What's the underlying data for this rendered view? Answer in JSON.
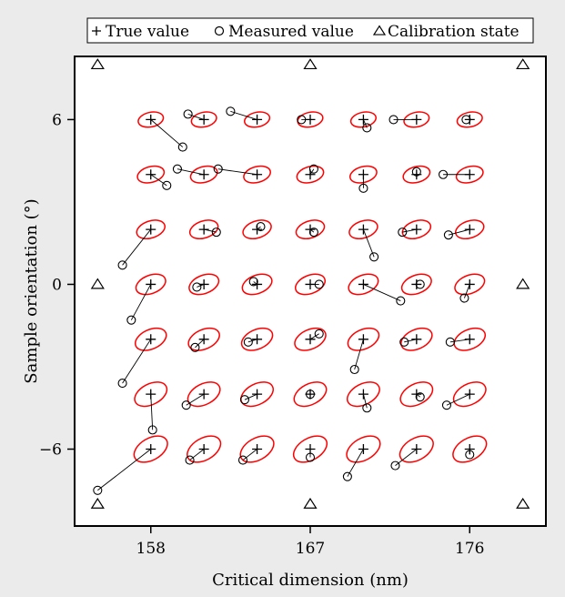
{
  "chart_data": {
    "type": "scatter",
    "title": "",
    "xlabel": "Critical dimension (nm)",
    "ylabel": "Sample orientation (°)",
    "xlim": [
      153.7,
      180.3
    ],
    "ylim": [
      -8.8,
      8.3
    ],
    "x_ticks": [
      158,
      167,
      176
    ],
    "x_tick_labels": [
      "158",
      "167",
      "176"
    ],
    "y_ticks": [
      -6,
      0,
      6
    ],
    "y_tick_labels": [
      "−6",
      "0",
      "6"
    ],
    "grid": false,
    "legend_position": "top",
    "legend": [
      {
        "marker": "+",
        "label": "True value"
      },
      {
        "marker": "○",
        "label": "Measured value"
      },
      {
        "marker": "△",
        "label": "Calibration state"
      }
    ],
    "calibration_states": [
      {
        "x": 155,
        "y": 8
      },
      {
        "x": 167,
        "y": 8
      },
      {
        "x": 179,
        "y": 8
      },
      {
        "x": 155,
        "y": 0
      },
      {
        "x": 179,
        "y": 0
      },
      {
        "x": 155,
        "y": -8
      },
      {
        "x": 167,
        "y": -8
      },
      {
        "x": 179,
        "y": -8
      }
    ],
    "grid_x": [
      158,
      161,
      164,
      167,
      170,
      173,
      176
    ],
    "grid_y": [
      6,
      4,
      2,
      0,
      -2,
      -4,
      -6
    ],
    "measured": [
      [
        [
          159.8,
          5.0
        ],
        [
          160.1,
          6.2
        ],
        [
          162.5,
          6.3
        ],
        [
          166.5,
          6.0
        ],
        [
          170.2,
          5.7
        ],
        [
          171.7,
          6.0
        ],
        [
          175.8,
          6.0
        ]
      ],
      [
        [
          158.9,
          3.6
        ],
        [
          159.5,
          4.2
        ],
        [
          161.8,
          4.2
        ],
        [
          167.2,
          4.2
        ],
        [
          170.0,
          3.5
        ],
        [
          173.0,
          4.1
        ],
        [
          174.5,
          4.0
        ]
      ],
      [
        [
          156.4,
          0.7
        ],
        [
          161.7,
          1.9
        ],
        [
          164.2,
          2.1
        ],
        [
          167.2,
          1.9
        ],
        [
          170.6,
          1.0
        ],
        [
          172.2,
          1.9
        ],
        [
          174.8,
          1.8
        ]
      ],
      [
        [
          156.9,
          -1.3
        ],
        [
          160.6,
          -0.1
        ],
        [
          163.8,
          0.1
        ],
        [
          167.5,
          0.0
        ],
        [
          172.1,
          -0.6
        ],
        [
          173.2,
          0.0
        ],
        [
          175.7,
          -0.5
        ]
      ],
      [
        [
          156.4,
          -3.6
        ],
        [
          160.5,
          -2.3
        ],
        [
          163.5,
          -2.1
        ],
        [
          167.5,
          -1.8
        ],
        [
          169.5,
          -3.1
        ],
        [
          172.3,
          -2.1
        ],
        [
          174.9,
          -2.1
        ]
      ],
      [
        [
          158.1,
          -5.3
        ],
        [
          160.0,
          -4.4
        ],
        [
          163.3,
          -4.2
        ],
        [
          167.0,
          -4.0
        ],
        [
          170.2,
          -4.5
        ],
        [
          173.2,
          -4.1
        ],
        [
          174.7,
          -4.4
        ]
      ],
      [
        [
          155.0,
          -7.5
        ],
        [
          160.2,
          -6.4
        ],
        [
          163.2,
          -6.4
        ],
        [
          167.0,
          -6.3
        ],
        [
          169.1,
          -7.0
        ],
        [
          171.8,
          -6.6
        ],
        [
          176.0,
          -6.2
        ]
      ]
    ],
    "ellipse_color": "#ff0000",
    "line_color": "#000000",
    "background": "#ebebeb",
    "plot_background": "#ffffff"
  }
}
